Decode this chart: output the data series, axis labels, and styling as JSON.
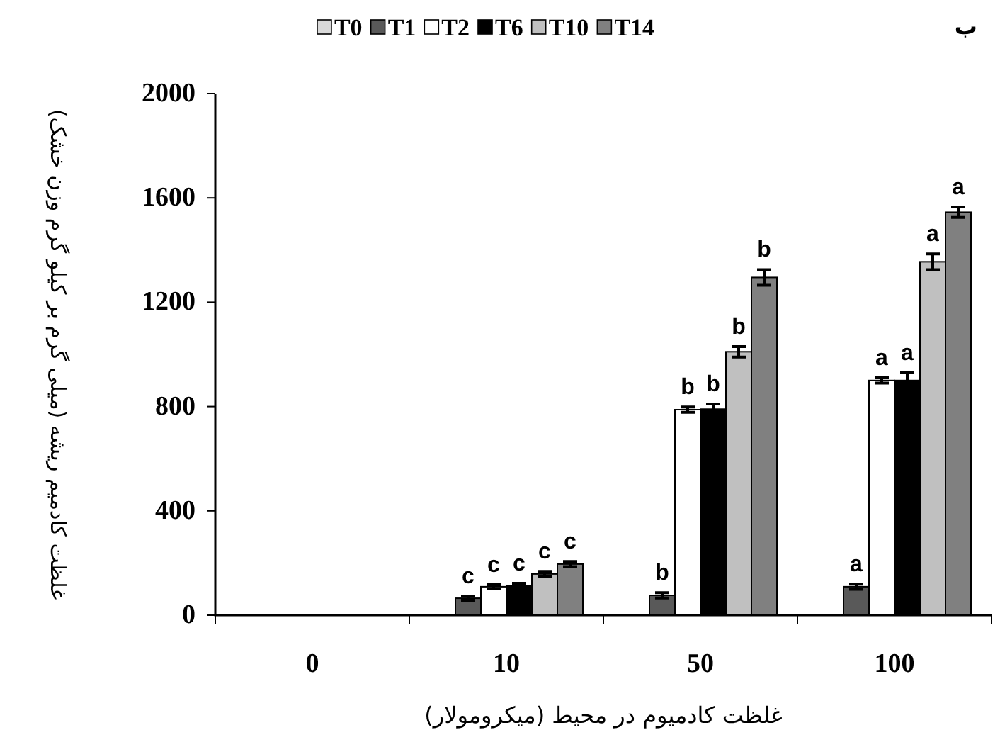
{
  "chart_data": {
    "type": "bar",
    "title": "ب",
    "xlabel": "غلظت کادمیوم در محیط (میکرومولار)",
    "ylabel": "غلظت کادمیم ریشه (میلی گرم بر کیلو گرم وزن خشک)",
    "categories": [
      "0",
      "10",
      "50",
      "100"
    ],
    "ylim": [
      0,
      2000
    ],
    "yticks": [
      0,
      400,
      800,
      1200,
      1600,
      2000
    ],
    "legend": "top",
    "grid": false,
    "series": [
      {
        "name": "T0",
        "color": "#d9d9d9",
        "values": [
          0,
          0,
          0,
          0
        ]
      },
      {
        "name": "T1",
        "color": "#595959",
        "values": [
          0,
          65,
          76,
          109
        ],
        "errors": [
          null,
          8,
          10,
          10
        ],
        "value_labels": [
          null,
          "c",
          "b",
          "a"
        ]
      },
      {
        "name": "T2",
        "color": "#ffffff",
        "values": [
          0,
          109,
          788,
          900
        ],
        "errors": [
          null,
          8,
          10,
          10
        ],
        "value_labels": [
          null,
          "c",
          "b",
          "a"
        ]
      },
      {
        "name": "T6",
        "color": "#000000",
        "values": [
          0,
          114,
          790,
          900
        ],
        "errors": [
          null,
          8,
          20,
          30
        ],
        "value_labels": [
          null,
          "c",
          "b",
          "a"
        ]
      },
      {
        "name": "T10",
        "color": "#c0c0c0",
        "values": [
          0,
          158,
          1010,
          1355
        ],
        "errors": [
          null,
          10,
          20,
          30
        ],
        "value_labels": [
          null,
          "c",
          "b",
          "a"
        ]
      },
      {
        "name": "T14",
        "color": "#808080",
        "values": [
          0,
          196,
          1295,
          1545
        ],
        "errors": [
          null,
          10,
          30,
          20
        ],
        "value_labels": [
          null,
          "c",
          "b",
          "a"
        ]
      }
    ]
  }
}
